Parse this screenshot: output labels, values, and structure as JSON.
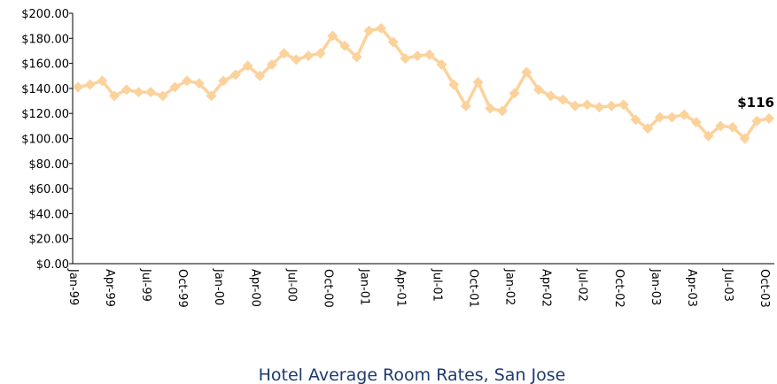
{
  "chart_data": {
    "type": "line",
    "title": "Hotel Average Room Rates, San Jose",
    "categories": [
      "Jan-99",
      null,
      null,
      "Apr-99",
      null,
      null,
      "Jul-99",
      null,
      null,
      "Oct-99",
      null,
      null,
      "Jan-00",
      null,
      null,
      "Apr-00",
      null,
      null,
      "Jul-00",
      null,
      null,
      "Oct-00",
      null,
      null,
      "Jan-01",
      null,
      null,
      "Apr-01",
      null,
      null,
      "Jul-01",
      null,
      null,
      "Oct-01",
      null,
      null,
      "Jan-02",
      null,
      null,
      "Apr-02",
      null,
      null,
      "Jul-02",
      null,
      null,
      "Oct-02",
      null,
      null,
      "Jan-03",
      null,
      null,
      "Apr-03",
      null,
      null,
      "Jul-03",
      null,
      null,
      "Oct-03"
    ],
    "series": [
      {
        "name": null,
        "color": "#fcd29c",
        "values": [
          141,
          143,
          146,
          134,
          139,
          137,
          137,
          134,
          141,
          146,
          144,
          134,
          146,
          151,
          158,
          150,
          159,
          168,
          163,
          166,
          168,
          182,
          174,
          165,
          186,
          188,
          177,
          164,
          166,
          167,
          159,
          143,
          126,
          145,
          124,
          122,
          136,
          153,
          139,
          134,
          131,
          126,
          127,
          125,
          126,
          127,
          115,
          108,
          117,
          117,
          119,
          113,
          102,
          110,
          109,
          100,
          114,
          116
        ],
        "value_labels": [
          null,
          null,
          null,
          null,
          null,
          null,
          null,
          null,
          null,
          null,
          null,
          null,
          null,
          null,
          null,
          null,
          null,
          null,
          null,
          null,
          null,
          null,
          null,
          null,
          null,
          null,
          null,
          null,
          null,
          null,
          null,
          null,
          null,
          null,
          null,
          null,
          null,
          null,
          null,
          null,
          null,
          null,
          null,
          null,
          null,
          null,
          null,
          null,
          null,
          null,
          null,
          null,
          null,
          null,
          null,
          null,
          null,
          "$116"
        ]
      }
    ],
    "ylim": [
      0,
      200
    ],
    "yticks": [
      {
        "value": 0,
        "label": "$0.00"
      },
      {
        "value": 20,
        "label": "$20.00"
      },
      {
        "value": 40,
        "label": "$40.00"
      },
      {
        "value": 60,
        "label": "$60.00"
      },
      {
        "value": 80,
        "label": "$80.00"
      },
      {
        "value": 100,
        "label": "$100.00"
      },
      {
        "value": 120,
        "label": "$120.00"
      },
      {
        "value": 140,
        "label": "$140.00"
      },
      {
        "value": 160,
        "label": "$160.00"
      },
      {
        "value": 180,
        "label": "$180.00"
      },
      {
        "value": 200,
        "label": "$200.00"
      }
    ],
    "grid": false
  }
}
